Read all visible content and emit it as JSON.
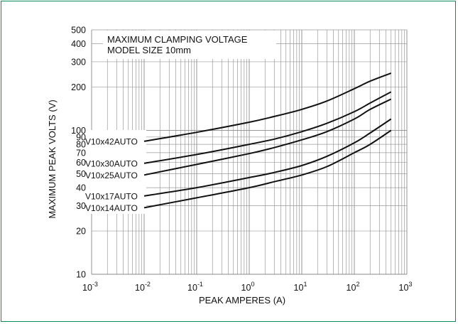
{
  "chart_data": {
    "type": "line",
    "title": "MAXIMUM CLAMPING VOLTAGE",
    "subtitle": "MODEL SIZE 10mm",
    "xlabel": "PEAK AMPERES (A)",
    "ylabel": "MAXIMUM PEAK VOLTS (V)",
    "x_scale": "log",
    "y_scale": "log",
    "xlim": [
      0.001,
      1000
    ],
    "ylim": [
      10,
      500
    ],
    "x_ticks": [
      {
        "value": 0.001,
        "base": "10",
        "exp": "-3"
      },
      {
        "value": 0.01,
        "base": "10",
        "exp": "-2"
      },
      {
        "value": 0.1,
        "base": "10",
        "exp": "-1"
      },
      {
        "value": 1,
        "base": "10",
        "exp": "0"
      },
      {
        "value": 10,
        "base": "10",
        "exp": "1"
      },
      {
        "value": 100,
        "base": "10",
        "exp": "2"
      },
      {
        "value": 1000,
        "base": "10",
        "exp": "3"
      }
    ],
    "y_ticks": [
      {
        "value": 10,
        "label": "10"
      },
      {
        "value": 20,
        "label": "20"
      },
      {
        "value": 30,
        "label": "30"
      },
      {
        "value": 40,
        "label": "40"
      },
      {
        "value": 50,
        "label": "50"
      },
      {
        "value": 60,
        "label": "60"
      },
      {
        "value": 70,
        "label": "70"
      },
      {
        "value": 80,
        "label": "80"
      },
      {
        "value": 90,
        "label": "90"
      },
      {
        "value": 100,
        "label": "100"
      },
      {
        "value": 200,
        "label": "200"
      },
      {
        "value": 300,
        "label": "300"
      },
      {
        "value": 400,
        "label": "400"
      },
      {
        "value": 500,
        "label": "500"
      }
    ],
    "grid": true,
    "series": [
      {
        "name": "V10x42AUTO",
        "x": [
          0.01,
          0.1,
          1,
          3,
          10,
          30,
          100,
          200,
          500
        ],
        "y": [
          84,
          97,
          114,
          125,
          140,
          160,
          195,
          220,
          250
        ]
      },
      {
        "name": "V10x30AUTO",
        "x": [
          0.01,
          0.1,
          1,
          3,
          10,
          30,
          100,
          200,
          500
        ],
        "y": [
          59,
          68,
          80,
          87,
          98,
          112,
          135,
          155,
          185
        ]
      },
      {
        "name": "V10x25AUTO",
        "x": [
          0.01,
          0.1,
          1,
          3,
          10,
          30,
          100,
          200,
          500
        ],
        "y": [
          49,
          58,
          69,
          76,
          86,
          98,
          120,
          140,
          165
        ]
      },
      {
        "name": "V10x17AUTO",
        "x": [
          0.01,
          0.1,
          1,
          3,
          10,
          30,
          100,
          200,
          500
        ],
        "y": [
          35,
          40,
          47,
          51,
          57,
          66,
          82,
          96,
          120
        ]
      },
      {
        "name": "V10x14AUTO",
        "x": [
          0.01,
          0.1,
          1,
          3,
          10,
          30,
          100,
          200,
          500
        ],
        "y": [
          29,
          34,
          40,
          44,
          49,
          56,
          70,
          80,
          100
        ]
      }
    ],
    "series_label_positions": [
      {
        "name": "V10x42AUTO",
        "y": 84
      },
      {
        "name": "V10x30AUTO",
        "y": 59
      },
      {
        "name": "V10x25AUTO",
        "y": 49
      },
      {
        "name": "V10x17AUTO",
        "y": 35
      },
      {
        "name": "V10x14AUTO",
        "y": 29
      }
    ],
    "colors": {
      "frame": "#0a8c5a",
      "lines": "#111111",
      "grid": "#9a9a9a"
    }
  }
}
